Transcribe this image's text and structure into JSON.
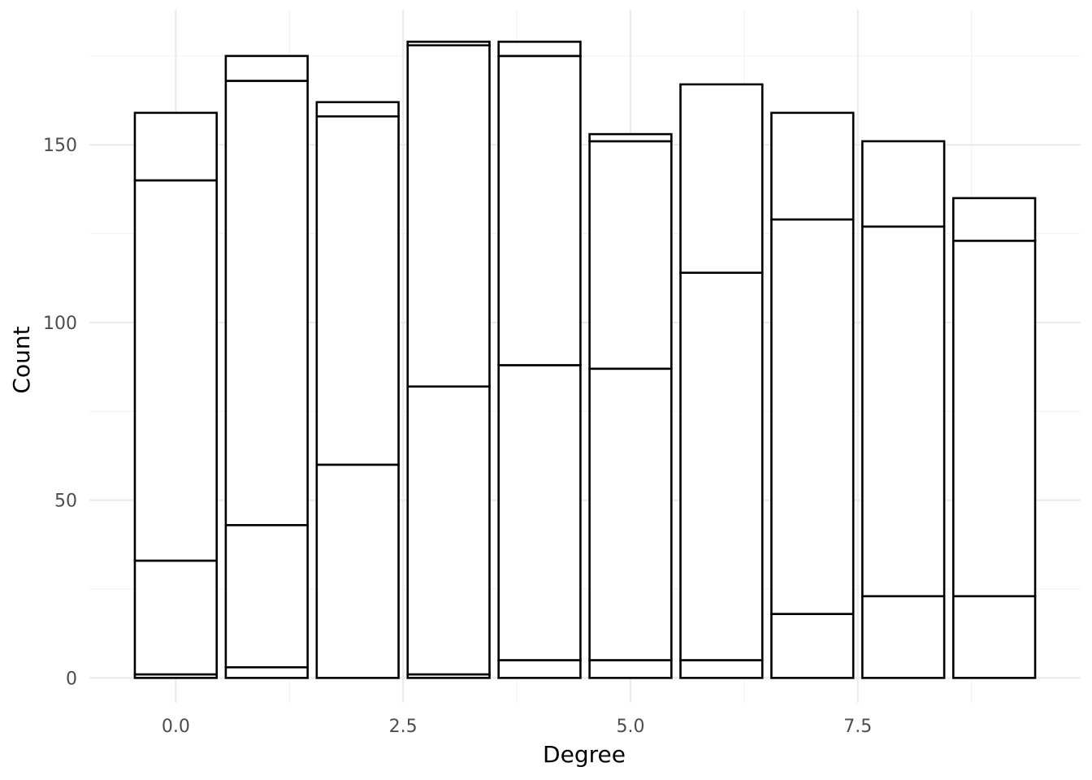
{
  "chart_data": {
    "type": "bar",
    "stacked": true,
    "xlabel": "Degree",
    "ylabel": "Count",
    "x": [
      0,
      1,
      2,
      3,
      4,
      5,
      6,
      7,
      8,
      9
    ],
    "xlim": [
      -0.95,
      9.95
    ],
    "ylim": [
      -7,
      188
    ],
    "x_ticks": [
      {
        "value": 0,
        "label": "0.0"
      },
      {
        "value": 2.5,
        "label": "2.5"
      },
      {
        "value": 5,
        "label": "5.0"
      },
      {
        "value": 7.5,
        "label": "7.5"
      }
    ],
    "y_ticks": [
      {
        "value": 0,
        "label": "0"
      },
      {
        "value": 50,
        "label": "50"
      },
      {
        "value": 100,
        "label": "100"
      },
      {
        "value": 150,
        "label": "150"
      }
    ],
    "grid": true,
    "legend": "none",
    "stack_boundaries": [
      [
        1,
        33,
        140,
        159
      ],
      [
        3,
        43,
        168,
        175
      ],
      [
        60,
        158,
        162
      ],
      [
        1,
        82,
        178,
        179
      ],
      [
        5,
        88,
        175,
        179
      ],
      [
        5,
        87,
        151,
        153
      ],
      [
        5,
        114,
        167
      ],
      [
        18,
        129,
        159
      ],
      [
        23,
        127,
        151
      ],
      [
        23,
        123,
        135
      ]
    ],
    "totals": [
      159,
      175,
      162,
      179,
      179,
      153,
      167,
      159,
      151,
      135
    ]
  }
}
